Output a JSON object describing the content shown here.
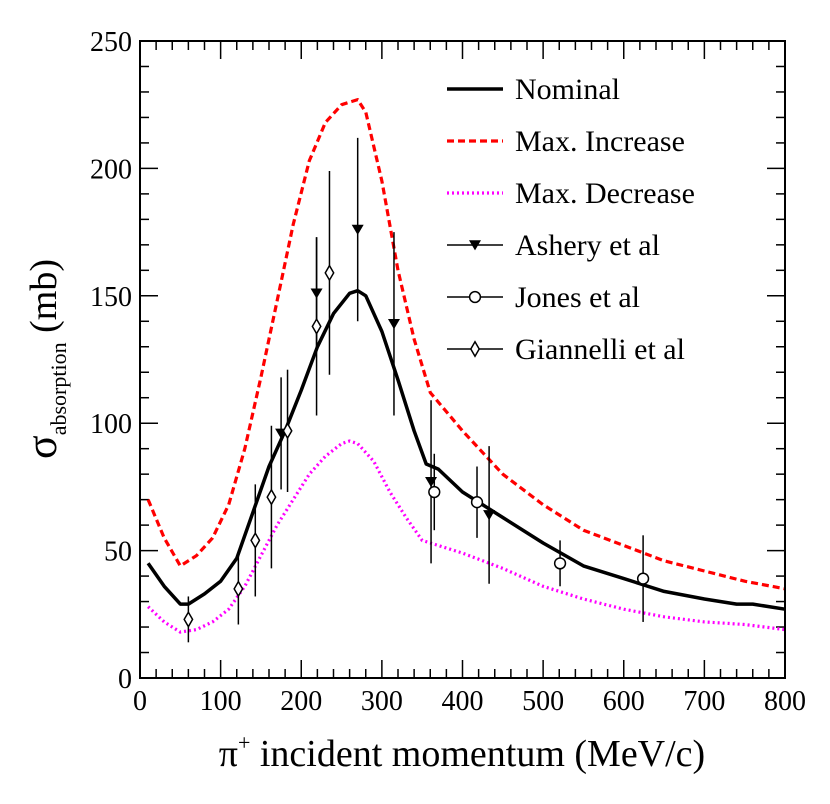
{
  "chart_data": {
    "type": "line",
    "xlabel": "π",
    "xlabel_sup": "+",
    "xlabel_rest": " incident momentum (MeV/c)",
    "ylabel": "σ",
    "ylabel_sub": "absorption",
    "ylabel_rest": " (mb)",
    "xlim": [
      0,
      800
    ],
    "ylim": [
      0,
      250
    ],
    "x_ticks": [
      0,
      100,
      200,
      300,
      400,
      500,
      600,
      700,
      800
    ],
    "y_ticks": [
      0,
      50,
      100,
      150,
      200,
      250
    ],
    "legend_position": "top-right",
    "colors": {
      "nominal": "#000000",
      "max_increase": "#ff0000",
      "max_decrease": "#ff00ff",
      "points": "#000000"
    },
    "series": [
      {
        "name": "Nominal",
        "kind": "line",
        "style": "solid",
        "color": "#000000",
        "x": [
          10,
          30,
          50,
          60,
          80,
          100,
          120,
          140,
          160,
          180,
          200,
          220,
          240,
          260,
          270,
          280,
          300,
          320,
          340,
          355,
          370,
          400,
          450,
          500,
          550,
          600,
          650,
          700,
          740,
          760,
          800
        ],
        "y": [
          45,
          36,
          29,
          29,
          33,
          38,
          47,
          65,
          83,
          97,
          113,
          130,
          143,
          151,
          152,
          150,
          136,
          117,
          97,
          84,
          82,
          73,
          63,
          53,
          44,
          39,
          34,
          31,
          29,
          29,
          27
        ]
      },
      {
        "name": "Max. Increase",
        "kind": "line",
        "style": "dashed",
        "color": "#ff0000",
        "x": [
          10,
          30,
          50,
          70,
          90,
          110,
          130,
          150,
          170,
          190,
          210,
          230,
          250,
          270,
          280,
          300,
          320,
          340,
          360,
          400,
          450,
          500,
          550,
          600,
          650,
          700,
          750,
          800
        ],
        "y": [
          70,
          55,
          44,
          48,
          55,
          68,
          90,
          118,
          148,
          178,
          203,
          218,
          225,
          227,
          222,
          195,
          160,
          133,
          112,
          97,
          80,
          68,
          58,
          52,
          46,
          42,
          38,
          35
        ]
      },
      {
        "name": "Max. Decrease",
        "kind": "line",
        "style": "dotted",
        "color": "#ff00ff",
        "x": [
          10,
          30,
          50,
          70,
          90,
          110,
          130,
          150,
          170,
          190,
          210,
          230,
          250,
          260,
          270,
          290,
          310,
          330,
          350,
          370,
          400,
          450,
          500,
          550,
          600,
          650,
          700,
          750,
          800
        ],
        "y": [
          28,
          22,
          18,
          19,
          22,
          27,
          36,
          48,
          60,
          70,
          80,
          87,
          92,
          93,
          92,
          85,
          73,
          63,
          54,
          52,
          49,
          43,
          36,
          31,
          27,
          24,
          22,
          21,
          19
        ]
      },
      {
        "name": "Ashery et al",
        "kind": "points",
        "marker": "triangle-down",
        "x": [
          175,
          219,
          270,
          315,
          361,
          433
        ],
        "y": [
          96,
          151,
          176,
          139,
          77,
          64
        ],
        "err": [
          22,
          22,
          36,
          36,
          32,
          27
        ]
      },
      {
        "name": "Jones et al",
        "kind": "points",
        "marker": "circle",
        "x": [
          365,
          418,
          521,
          624
        ],
        "y": [
          73,
          69,
          45,
          39
        ],
        "err": [
          15,
          14,
          9,
          17
        ]
      },
      {
        "name": "Giannelli et al",
        "kind": "points",
        "marker": "diamond",
        "x": [
          60,
          122,
          143,
          163,
          183,
          219,
          235
        ],
        "y": [
          23,
          35,
          54,
          71,
          97,
          138,
          159
        ],
        "err": [
          9,
          14,
          22,
          28,
          24,
          35,
          40
        ]
      }
    ]
  }
}
